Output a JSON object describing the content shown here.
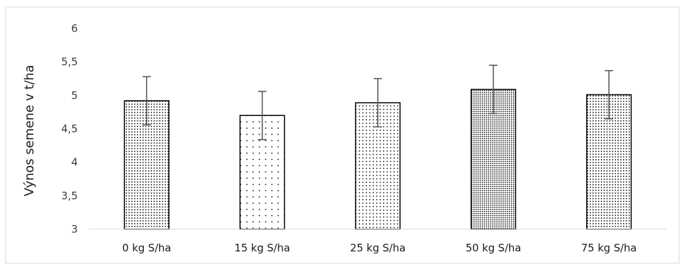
{
  "chart_data": {
    "type": "bar",
    "title": "",
    "xlabel": "",
    "ylabel": "Výnos semene v t/ha",
    "ylim": [
      3,
      6
    ],
    "yticks": [
      3,
      3.5,
      4,
      4.5,
      5,
      5.5,
      6
    ],
    "ytick_labels": [
      "3",
      "3,5",
      "4",
      "4,5",
      "5",
      "5,5",
      "6"
    ],
    "categories": [
      "0 kg S/ha",
      "15 kg S/ha",
      "25 kg S/ha",
      "50 kg S/ha",
      "75 kg S/ha"
    ],
    "values": [
      4.92,
      4.7,
      4.89,
      5.09,
      5.01
    ],
    "error": [
      0.36,
      0.36,
      0.36,
      0.36,
      0.36
    ],
    "patterns": [
      "dense-dots",
      "sparse-dots",
      "medium-dots",
      "very-dense-dots",
      "dense-dots"
    ],
    "grid": false,
    "legend": "none",
    "colors": {
      "bar_outline": "#000000",
      "dot": "#000000",
      "error_bar": "#595959",
      "axis": "#d9d9d9",
      "frame": "#d9d9d9"
    }
  }
}
